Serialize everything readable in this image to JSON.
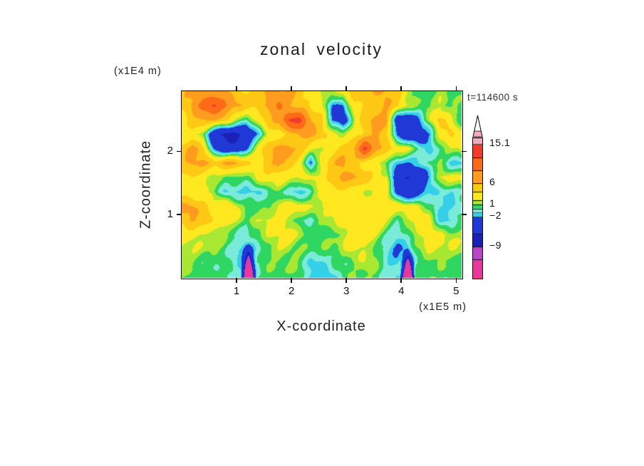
{
  "chart_data": {
    "type": "heatmap",
    "title": "zonal velocity",
    "timestamp": "t=114600 s",
    "xlabel": "X-coordinate",
    "zlabel": "Z-coordinate",
    "x_units_label": "(x1E5 m)",
    "z_units_label": "(x1E4 m)",
    "x_range": [
      0,
      5.1
    ],
    "z_range": [
      0,
      2.95
    ],
    "x_ticks": [
      1,
      2,
      3,
      4,
      5
    ],
    "z_ticks": [
      1,
      2
    ],
    "levels": [
      -16.5,
      -12,
      -9,
      -6,
      -2,
      -1,
      0,
      1,
      2,
      4,
      6,
      9,
      12,
      15.1,
      16.5
    ],
    "colors": [
      "#E8399B",
      "#BC45C6",
      "#1A22B8",
      "#2038D6",
      "#35D0E8",
      "#7BEBD9",
      "#2FD662",
      "#A9E832",
      "#FFE81F",
      "#FFC814",
      "#FF9C1F",
      "#FF6A17",
      "#F23B28",
      "#F5A9BE"
    ],
    "colorbar": {
      "vmin": -16.5,
      "vmax": 16.5,
      "labels": [
        {
          "value": 15.1,
          "text": "15.1"
        },
        {
          "value": 6,
          "text": "6"
        },
        {
          "value": 1,
          "text": "1"
        },
        {
          "value": -2,
          "text": "−2"
        },
        {
          "value": -9,
          "text": "−9"
        }
      ]
    },
    "grid": {
      "x0": 0,
      "x1": 5.1,
      "z0": 0,
      "z1": 2.95,
      "row_order": "bottom-to-top",
      "values": [
        [
          1,
          0.5,
          0.5,
          1,
          0.5,
          0,
          -1,
          0,
          0.5,
          1,
          0.5,
          0.5,
          -1.5,
          -1.5,
          -1,
          0.5,
          1,
          1,
          0.5,
          0,
          -1,
          0,
          0.5,
          1,
          1,
          0.5,
          0.5
        ],
        [
          1.5,
          1,
          0.5,
          0.5,
          0.5,
          -0.5,
          -1.5,
          -0.5,
          0.5,
          1,
          1,
          0.5,
          -1,
          -1,
          0,
          0.5,
          1,
          1.5,
          1,
          -0.5,
          -1.5,
          -0.5,
          0.5,
          1,
          1,
          1,
          0.5
        ],
        [
          2,
          2,
          1.5,
          1,
          0.5,
          -0.5,
          -2,
          -0.5,
          1,
          2,
          2,
          1,
          0.5,
          0.5,
          1,
          2,
          2.5,
          2,
          1,
          -0.5,
          -2,
          -0.5,
          1,
          2,
          2,
          2,
          1.5
        ],
        [
          3,
          3,
          2,
          1.5,
          1,
          0.5,
          -1,
          0.5,
          2,
          3,
          3,
          2,
          0.5,
          0.5,
          0.5,
          2,
          3,
          3,
          2,
          0.5,
          -1,
          0.5,
          2,
          3,
          3,
          2,
          1
        ],
        [
          5,
          6.5,
          5,
          3,
          3,
          2,
          0.5,
          2,
          3,
          3,
          2,
          0.5,
          -0.5,
          0.5,
          2,
          3,
          3,
          3,
          3,
          2,
          0.5,
          2,
          3,
          2,
          -1.5,
          -1.5,
          0.5
        ],
        [
          6.5,
          6.5,
          5,
          3,
          3,
          2,
          0.5,
          0.5,
          0.5,
          2,
          3,
          3,
          2,
          2,
          3,
          3,
          3,
          3,
          3,
          3,
          3,
          3,
          2,
          0.5,
          -1.5,
          -1.5,
          -0.5
        ],
        [
          3,
          3,
          2,
          0.5,
          -1,
          -1.5,
          -1.5,
          -1,
          0.5,
          0.5,
          -1,
          -1.5,
          -0.5,
          2,
          3,
          3,
          3,
          2,
          3,
          3,
          -3,
          -5,
          -4,
          -1.5,
          -1,
          -1.5,
          -0.5
        ],
        [
          3,
          4,
          3,
          2,
          0.5,
          0.5,
          0.5,
          2,
          3,
          3,
          2,
          2,
          3,
          3,
          5,
          6.5,
          6.5,
          5,
          3,
          2,
          -5,
          -6.5,
          -5,
          -1.5,
          2,
          3,
          3
        ],
        [
          5,
          6.5,
          6.5,
          5,
          6.5,
          6.5,
          5,
          3,
          5,
          6.5,
          5,
          3,
          -3,
          3,
          5,
          6.5,
          5,
          3,
          2,
          0.5,
          -2,
          -2,
          -1.5,
          0.5,
          0.5,
          -1.5,
          -1.5
        ],
        [
          5,
          6.5,
          5,
          -2,
          -5,
          -5,
          -2,
          2,
          5,
          6.5,
          6.5,
          5,
          3,
          2,
          3,
          5,
          6.5,
          13,
          6.5,
          5,
          3,
          2,
          0.5,
          -1.5,
          0.5,
          2,
          3
        ],
        [
          2,
          3,
          0.5,
          -5,
          -6.5,
          -6.5,
          -5,
          -1.5,
          2,
          3,
          5,
          6.5,
          6.5,
          5,
          3,
          2,
          3,
          5,
          6.5,
          5,
          -2,
          -5,
          -5,
          -2,
          3,
          5,
          2
        ],
        [
          3,
          5,
          6.5,
          6.5,
          5,
          2,
          0.5,
          2,
          5,
          6.5,
          13,
          13,
          6.5,
          5,
          -2,
          -4,
          2,
          5,
          6.5,
          6.5,
          -4,
          -5,
          -2,
          2,
          5,
          3,
          0.5
        ],
        [
          5,
          6.5,
          10,
          12.5,
          10,
          6.5,
          5,
          5,
          6.5,
          10,
          6.5,
          5,
          3,
          2,
          -2,
          -2,
          3,
          5,
          5,
          6.5,
          5,
          2,
          0.5,
          0.5,
          2,
          0.5,
          0.5
        ],
        [
          5,
          6.5,
          6.5,
          6.5,
          6.5,
          5,
          3,
          5,
          6.5,
          6.5,
          6.5,
          5,
          3,
          2,
          2,
          3,
          5,
          5,
          6.5,
          6.5,
          5,
          2,
          0.5,
          0.5,
          2,
          0.5,
          0.5
        ]
      ]
    },
    "spikes": [
      {
        "x": 1.22,
        "w": 0.16,
        "h": 0.62,
        "amp": 42
      },
      {
        "x": 4.12,
        "w": 0.16,
        "h": 0.58,
        "amp": 42
      }
    ]
  }
}
